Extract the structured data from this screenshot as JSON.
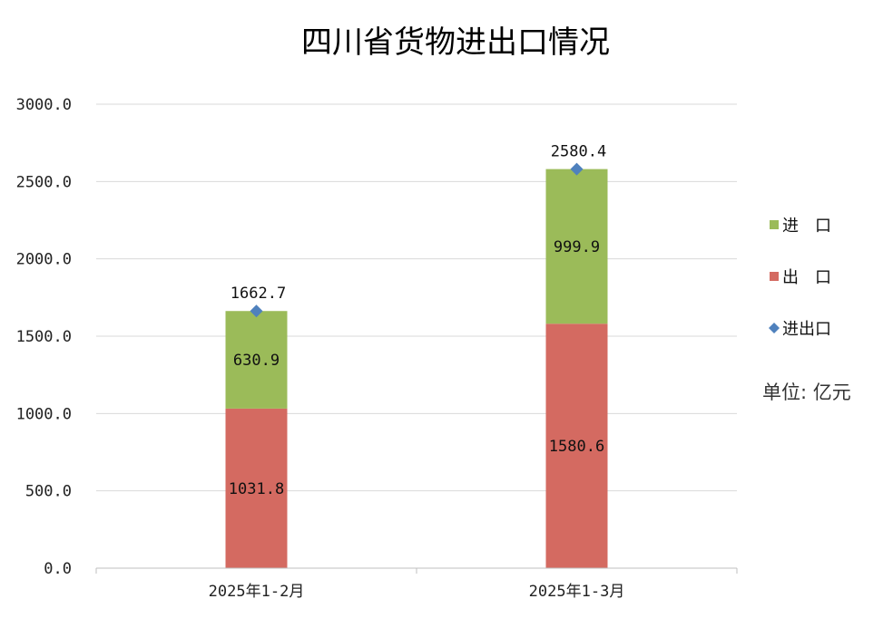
{
  "chart_data": {
    "type": "bar",
    "stacked": true,
    "title": "四川省货物进出口情况",
    "categories": [
      "2025年1-2月",
      "2025年1-3月"
    ],
    "series": [
      {
        "name": "出　口",
        "values": [
          1031.8,
          1580.6
        ],
        "color": "#d46a61"
      },
      {
        "name": "进　口",
        "values": [
          630.9,
          999.9
        ],
        "color": "#9bbb59"
      }
    ],
    "totals": {
      "name": "进出口",
      "values": [
        1662.7,
        2580.4
      ],
      "color": "#4f81bd",
      "marker": "diamond"
    },
    "value_labels": {
      "export": [
        "1031.8",
        "1580.6"
      ],
      "import": [
        "630.9",
        "999.9"
      ],
      "total": [
        "1662.7",
        "2580.4"
      ]
    },
    "y_ticks": [
      "0.0",
      "500.0",
      "1000.0",
      "1500.0",
      "2000.0",
      "2500.0",
      "3000.0"
    ],
    "ylim": [
      0,
      3000
    ],
    "grid": true,
    "legend": [
      {
        "label": "进　口",
        "shape": "square",
        "color": "#9bbb59"
      },
      {
        "label": "出　口",
        "shape": "square",
        "color": "#d46a61"
      },
      {
        "label": "进出口",
        "shape": "diamond",
        "color": "#4f81bd"
      }
    ],
    "legend_position": "right",
    "unit": "单位: 亿元"
  }
}
